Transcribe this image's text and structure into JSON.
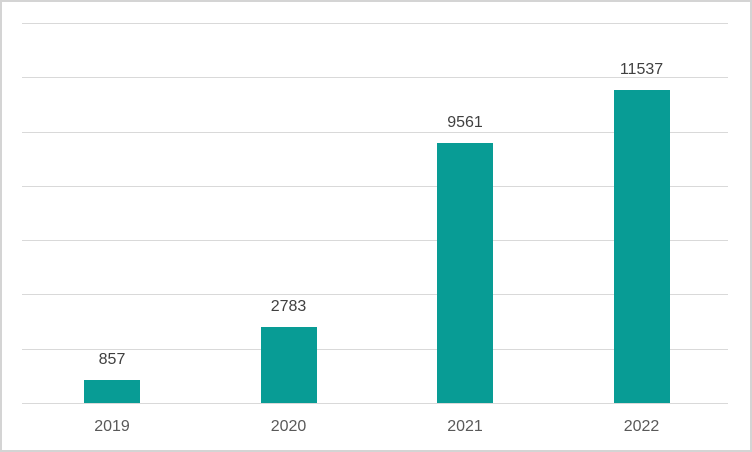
{
  "chart_data": {
    "type": "bar",
    "title": "",
    "xlabel": "",
    "ylabel": "",
    "categories": [
      "2019",
      "2020",
      "2021",
      "2022"
    ],
    "values": [
      857,
      2783,
      9561,
      11537
    ],
    "data_labels": [
      "857",
      "2783",
      "9561",
      "11537"
    ],
    "data_labels_visible": true,
    "ylim": [
      0,
      14000
    ],
    "gridline_step": 2000,
    "grid": "horizontal",
    "legend": "none",
    "y_tick_labels_visible": false,
    "colors": {
      "bar": "#089c95",
      "gridline": "#d9d9d9",
      "axis_line": "#d9d9d9",
      "data_label": "#404040",
      "category_label": "#595959",
      "background": "#ffffff",
      "frame_border": "#d4d4d4"
    }
  }
}
